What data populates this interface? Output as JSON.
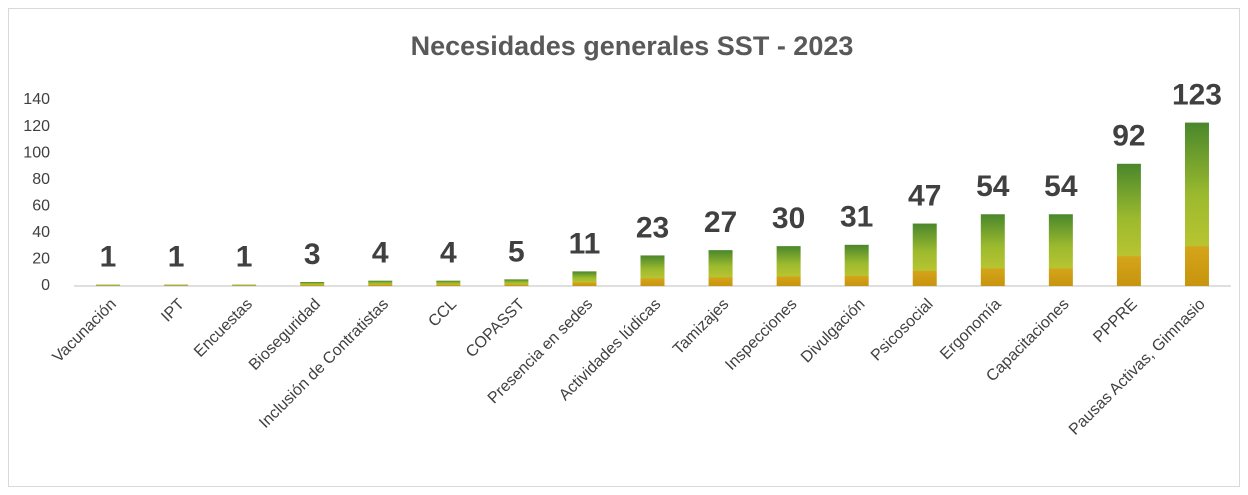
{
  "chart_data": {
    "type": "bar",
    "title": "Necesidades generales SST - 2023",
    "categories": [
      "Vacunación",
      "IPT",
      "Encuestas",
      "Bioseguridad",
      "Inclusión de Contratistas",
      "CCL",
      "COPASST",
      "Presencia en sedes",
      "Actividades lúdicas",
      "Tamizajes",
      "Inspecciones",
      "Divulgación",
      "Psicosocial",
      "Ergonomía",
      "Capacitaciones",
      "PPPRE",
      "Pausas Activas, Gimnasio"
    ],
    "values": [
      1,
      1,
      1,
      3,
      4,
      4,
      5,
      11,
      23,
      27,
      30,
      31,
      47,
      54,
      54,
      92,
      123
    ],
    "color": "#4a872c",
    "ylim": [
      0,
      140
    ],
    "yticks": [
      0,
      20,
      40,
      60,
      80,
      100,
      120,
      140
    ],
    "grid": false
  }
}
